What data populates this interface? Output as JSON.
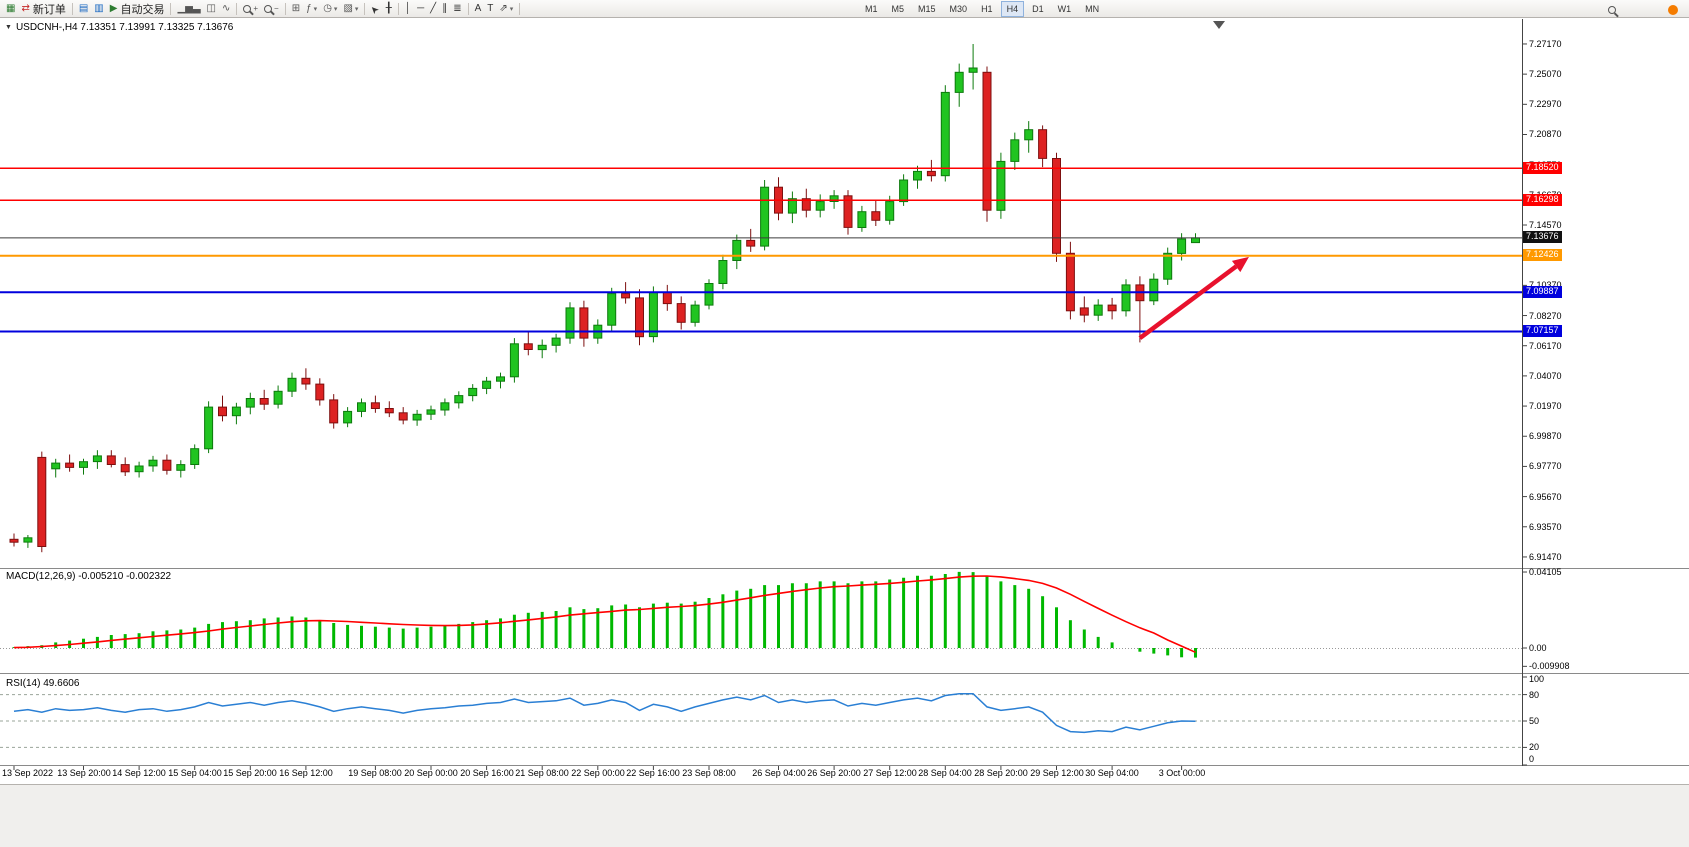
{
  "toolbar": {
    "groups": [
      {
        "items": [
          {
            "type": "icon",
            "name": "new-chart",
            "glyph": "▦",
            "color": "#2e7d32"
          },
          {
            "type": "button",
            "name": "new-order",
            "glyph": "⇄",
            "color": "#c62828",
            "label": "新订单"
          }
        ]
      },
      {
        "items": [
          {
            "type": "icon",
            "name": "market-watch",
            "glyph": "▤",
            "color": "#1565c0"
          },
          {
            "type": "icon",
            "name": "data-window",
            "glyph": "▥",
            "color": "#1565c0"
          },
          {
            "type": "button",
            "name": "autotrading",
            "glyph": "▶",
            "color": "#2e7d32",
            "label": "自动交易"
          }
        ]
      },
      {
        "items": [
          {
            "type": "icon",
            "name": "bar-chart-mode",
            "glyph": "▁▅▃",
            "color": "#555555"
          },
          {
            "type": "icon",
            "name": "candlestick-mode",
            "glyph": "◫",
            "color": "#555555"
          },
          {
            "type": "icon",
            "name": "line-chart-mode",
            "glyph": "∿",
            "color": "#555555"
          }
        ]
      },
      {
        "items": [
          {
            "type": "icon",
            "name": "zoom-in",
            "css": "mag",
            "sub": "+"
          },
          {
            "type": "icon",
            "name": "zoom-out",
            "css": "mag",
            "sub": "−"
          }
        ]
      },
      {
        "items": [
          {
            "type": "icon",
            "name": "tile-windows",
            "glyph": "⊞",
            "color": "#555555"
          },
          {
            "type": "dropdown",
            "name": "indicators",
            "glyph": "ƒ",
            "color": "#555555"
          },
          {
            "type": "dropdown",
            "name": "periods",
            "glyph": "◷",
            "color": "#555555"
          },
          {
            "type": "dropdown",
            "name": "templates",
            "glyph": "▧",
            "color": "#555555"
          }
        ]
      },
      {
        "items": [
          {
            "type": "icon",
            "name": "cursor",
            "glyph": "➤",
            "color": "#333333"
          },
          {
            "type": "icon",
            "name": "crosshair",
            "glyph": "╂",
            "color": "#333333"
          }
        ]
      },
      {
        "items": [
          {
            "type": "icon",
            "name": "vertical-line",
            "glyph": "│",
            "color": "#333333"
          },
          {
            "type": "icon",
            "name": "horizontal-line",
            "glyph": "─",
            "color": "#333333"
          },
          {
            "type": "icon",
            "name": "trendline",
            "glyph": "╱",
            "color": "#333333"
          },
          {
            "type": "icon",
            "name": "equidistant-channel",
            "glyph": "∥",
            "color": "#333333"
          },
          {
            "type": "icon",
            "name": "fibonacci",
            "glyph": "≣",
            "color": "#333333"
          }
        ]
      },
      {
        "items": [
          {
            "type": "icon",
            "name": "text",
            "glyph": "A",
            "color": "#333333"
          },
          {
            "type": "icon",
            "name": "text-label",
            "glyph": "T",
            "color": "#333333"
          },
          {
            "type": "dropdown",
            "name": "arrows",
            "glyph": "⇗",
            "color": "#333333"
          }
        ]
      }
    ],
    "timeframes": [
      "M1",
      "M5",
      "M15",
      "M30",
      "H1",
      "H4",
      "D1",
      "W1",
      "MN"
    ],
    "active_timeframe": "H4",
    "right": [
      {
        "name": "search",
        "css": "mag"
      },
      {
        "name": "notification",
        "css": "dot",
        "color": "#f57c00"
      }
    ]
  },
  "chart": {
    "symbol_label": "USDCNH-,H4 7.13351 7.13991 7.13325 7.13676",
    "price_ticks": [
      "7.27170",
      "7.25070",
      "7.22970",
      "7.20870",
      "7.18770",
      "7.16670",
      "7.14570",
      "7.12470",
      "7.10370",
      "7.08270",
      "7.06170",
      "7.04070",
      "7.01970",
      "6.99870",
      "6.97770",
      "6.95670",
      "6.93570",
      "6.91470"
    ],
    "levels": [
      {
        "label": "7.18520",
        "price": 7.1852,
        "color": "#ff0000",
        "width": 1.5
      },
      {
        "label": "7.16298",
        "price": 7.16298,
        "color": "#ff0000",
        "width": 1.5
      },
      {
        "label": "7.12426",
        "price": 7.12426,
        "color": "#ff9900",
        "width": 2
      },
      {
        "label": "7.09887",
        "price": 7.09887,
        "color": "#0000dd",
        "width": 2
      },
      {
        "label": "7.07157",
        "price": 7.07157,
        "color": "#0000dd",
        "width": 2
      }
    ],
    "current_price": {
      "label": "7.13676",
      "price": 7.13676,
      "color": "#3c3c3c"
    },
    "time_labels": [
      [
        "13 Sep 2022",
        0
      ],
      [
        "13 Sep 20:00",
        5
      ],
      [
        "14 Sep 12:00",
        9
      ],
      [
        "15 Sep 04:00",
        13
      ],
      [
        "15 Sep 20:00",
        17
      ],
      [
        "16 Sep 12:00",
        21
      ],
      [
        "19 Sep 08:00",
        26
      ],
      [
        "20 Sep 00:00",
        30
      ],
      [
        "20 Sep 16:00",
        34
      ],
      [
        "21 Sep 08:00",
        38
      ],
      [
        "22 Sep 00:00",
        42
      ],
      [
        "22 Sep 16:00",
        46
      ],
      [
        "23 Sep 08:00",
        50
      ],
      [
        "26 Sep 04:00",
        55
      ],
      [
        "26 Sep 20:00",
        59
      ],
      [
        "27 Sep 12:00",
        63
      ],
      [
        "28 Sep 04:00",
        67
      ],
      [
        "28 Sep 20:00",
        71
      ],
      [
        "29 Sep 12:00",
        75
      ],
      [
        "30 Sep 04:00",
        79
      ],
      [
        "3 Oct 00:00",
        84
      ]
    ],
    "colors": {
      "up": "#21c421",
      "up_border": "#0c7a0c",
      "down": "#dd2222",
      "down_border": "#7d0f0f",
      "macd_hist": "#00b800",
      "macd_signal": "#ff0000",
      "rsi_line": "#2a7fd4",
      "axis_text": "#000000"
    }
  },
  "chart_data": {
    "type": "candlestick",
    "symbol": "USDCNH-",
    "timeframe": "H4",
    "ohlc_current": {
      "open": "7.13351",
      "high": "7.13991",
      "low": "7.13325",
      "close": "7.13676"
    },
    "candles": [
      [
        6.927,
        6.931,
        6.922,
        6.925
      ],
      [
        6.925,
        6.93,
        6.921,
        6.928
      ],
      [
        6.984,
        6.988,
        6.918,
        6.922
      ],
      [
        6.976,
        6.983,
        6.97,
        6.98
      ],
      [
        6.98,
        6.986,
        6.974,
        6.977
      ],
      [
        6.977,
        6.983,
        6.972,
        6.981
      ],
      [
        6.981,
        6.989,
        6.976,
        6.985
      ],
      [
        6.985,
        6.989,
        6.977,
        6.979
      ],
      [
        6.979,
        6.984,
        6.971,
        6.974
      ],
      [
        6.974,
        6.981,
        6.97,
        6.978
      ],
      [
        6.978,
        6.985,
        6.974,
        6.982
      ],
      [
        6.982,
        6.986,
        6.972,
        6.975
      ],
      [
        6.975,
        6.982,
        6.97,
        6.979
      ],
      [
        6.979,
        6.993,
        6.976,
        6.99
      ],
      [
        6.99,
        7.023,
        6.987,
        7.019
      ],
      [
        7.019,
        7.027,
        7.009,
        7.013
      ],
      [
        7.013,
        7.022,
        7.007,
        7.019
      ],
      [
        7.019,
        7.029,
        7.014,
        7.025
      ],
      [
        7.025,
        7.031,
        7.017,
        7.021
      ],
      [
        7.021,
        7.034,
        7.018,
        7.03
      ],
      [
        7.03,
        7.043,
        7.026,
        7.039
      ],
      [
        7.039,
        7.046,
        7.031,
        7.035
      ],
      [
        7.035,
        7.039,
        7.02,
        7.024
      ],
      [
        7.024,
        7.028,
        7.004,
        7.008
      ],
      [
        7.008,
        7.019,
        7.005,
        7.016
      ],
      [
        7.016,
        7.025,
        7.012,
        7.022
      ],
      [
        7.022,
        7.027,
        7.015,
        7.018
      ],
      [
        7.018,
        7.023,
        7.012,
        7.015
      ],
      [
        7.015,
        7.019,
        7.007,
        7.01
      ],
      [
        7.01,
        7.017,
        7.006,
        7.014
      ],
      [
        7.014,
        7.02,
        7.01,
        7.017
      ],
      [
        7.017,
        7.025,
        7.013,
        7.022
      ],
      [
        7.022,
        7.03,
        7.018,
        7.027
      ],
      [
        7.027,
        7.035,
        7.023,
        7.032
      ],
      [
        7.032,
        7.04,
        7.028,
        7.037
      ],
      [
        7.037,
        7.043,
        7.032,
        7.04
      ],
      [
        7.04,
        7.067,
        7.036,
        7.063
      ],
      [
        7.063,
        7.071,
        7.055,
        7.059
      ],
      [
        7.059,
        7.066,
        7.053,
        7.062
      ],
      [
        7.062,
        7.07,
        7.057,
        7.067
      ],
      [
        7.067,
        7.092,
        7.063,
        7.088
      ],
      [
        7.088,
        7.093,
        7.061,
        7.067
      ],
      [
        7.067,
        7.08,
        7.063,
        7.076
      ],
      [
        7.076,
        7.102,
        7.072,
        7.098
      ],
      [
        7.098,
        7.106,
        7.091,
        7.095
      ],
      [
        7.095,
        7.101,
        7.062,
        7.068
      ],
      [
        7.068,
        7.103,
        7.064,
        7.099
      ],
      [
        7.099,
        7.104,
        7.086,
        7.091
      ],
      [
        7.091,
        7.096,
        7.073,
        7.078
      ],
      [
        7.078,
        7.093,
        7.075,
        7.09
      ],
      [
        7.09,
        7.108,
        7.087,
        7.105
      ],
      [
        7.105,
        7.125,
        7.101,
        7.121
      ],
      [
        7.121,
        7.139,
        7.115,
        7.135
      ],
      [
        7.135,
        7.143,
        7.127,
        7.131
      ],
      [
        7.131,
        7.177,
        7.128,
        7.172
      ],
      [
        7.172,
        7.179,
        7.149,
        7.154
      ],
      [
        7.154,
        7.169,
        7.147,
        7.164
      ],
      [
        7.164,
        7.171,
        7.151,
        7.156
      ],
      [
        7.156,
        7.167,
        7.151,
        7.162
      ],
      [
        7.162,
        7.17,
        7.157,
        7.166
      ],
      [
        7.166,
        7.17,
        7.139,
        7.144
      ],
      [
        7.144,
        7.159,
        7.141,
        7.155
      ],
      [
        7.155,
        7.163,
        7.145,
        7.149
      ],
      [
        7.149,
        7.166,
        7.146,
        7.162
      ],
      [
        7.162,
        7.181,
        7.159,
        7.177
      ],
      [
        7.177,
        7.187,
        7.171,
        7.183
      ],
      [
        7.183,
        7.191,
        7.176,
        7.18
      ],
      [
        7.18,
        7.243,
        7.176,
        7.238
      ],
      [
        7.238,
        7.258,
        7.228,
        7.252
      ],
      [
        7.252,
        7.2717,
        7.24,
        7.255
      ],
      [
        7.252,
        7.256,
        7.148,
        7.156
      ],
      [
        7.156,
        7.196,
        7.15,
        7.19
      ],
      [
        7.19,
        7.21,
        7.184,
        7.205
      ],
      [
        7.205,
        7.218,
        7.196,
        7.212
      ],
      [
        7.212,
        7.215,
        7.186,
        7.192
      ],
      [
        7.192,
        7.196,
        7.12,
        7.126
      ],
      [
        7.126,
        7.134,
        7.08,
        7.086
      ],
      [
        7.088,
        7.096,
        7.078,
        7.083
      ],
      [
        7.083,
        7.094,
        7.079,
        7.09
      ],
      [
        7.09,
        7.095,
        7.08,
        7.086
      ],
      [
        7.086,
        7.108,
        7.082,
        7.104
      ],
      [
        7.104,
        7.11,
        7.064,
        7.093
      ],
      [
        7.093,
        7.112,
        7.09,
        7.108
      ],
      [
        7.108,
        7.13,
        7.104,
        7.126
      ],
      [
        7.126,
        7.14,
        7.121,
        7.136
      ],
      [
        7.13351,
        7.13991,
        7.13325,
        7.13676
      ]
    ],
    "indicators": {
      "macd": {
        "label": "MACD(12,26,9) -0.005210 -0.002322",
        "params": "12,26,9",
        "values": "-0.005210 -0.002322",
        "axis_ticks": [
          "0.04105",
          "0.00",
          "-0.009908"
        ],
        "histogram": [
          0.0005,
          0.001,
          0.0015,
          0.003,
          0.004,
          0.005,
          0.006,
          0.007,
          0.0075,
          0.008,
          0.009,
          0.0095,
          0.01,
          0.011,
          0.013,
          0.014,
          0.0145,
          0.015,
          0.016,
          0.0165,
          0.017,
          0.0165,
          0.015,
          0.0135,
          0.0125,
          0.012,
          0.0115,
          0.011,
          0.0105,
          0.011,
          0.0115,
          0.012,
          0.013,
          0.014,
          0.015,
          0.016,
          0.018,
          0.019,
          0.0195,
          0.02,
          0.022,
          0.021,
          0.0215,
          0.023,
          0.0235,
          0.022,
          0.024,
          0.0245,
          0.024,
          0.025,
          0.027,
          0.029,
          0.031,
          0.032,
          0.034,
          0.034,
          0.035,
          0.035,
          0.036,
          0.036,
          0.035,
          0.036,
          0.036,
          0.037,
          0.038,
          0.039,
          0.039,
          0.04,
          0.0411,
          0.041,
          0.039,
          0.036,
          0.034,
          0.032,
          0.028,
          0.022,
          0.015,
          0.01,
          0.006,
          0.003,
          0.0,
          -0.002,
          -0.003,
          -0.004,
          -0.005,
          -0.00521
        ],
        "signal": [
          0.0002,
          0.0004,
          0.0008,
          0.0013,
          0.0019,
          0.0026,
          0.0033,
          0.0041,
          0.0048,
          0.0055,
          0.0062,
          0.0069,
          0.0076,
          0.0083,
          0.0092,
          0.0102,
          0.0111,
          0.0119,
          0.0127,
          0.0135,
          0.0142,
          0.0147,
          0.0148,
          0.0146,
          0.0143,
          0.0139,
          0.0135,
          0.0131,
          0.0127,
          0.0124,
          0.0122,
          0.0121,
          0.0122,
          0.0125,
          0.013,
          0.0136,
          0.0144,
          0.0152,
          0.016,
          0.0168,
          0.0178,
          0.0185,
          0.0191,
          0.0198,
          0.0205,
          0.0208,
          0.0214,
          0.022,
          0.0224,
          0.0229,
          0.0237,
          0.0247,
          0.0259,
          0.0271,
          0.0284,
          0.0295,
          0.0306,
          0.0315,
          0.0324,
          0.0331,
          0.0335,
          0.034,
          0.0344,
          0.0349,
          0.0355,
          0.0362,
          0.0368,
          0.0375,
          0.0383,
          0.0388,
          0.0389,
          0.0384,
          0.0375,
          0.0365,
          0.0349,
          0.0324,
          0.029,
          0.0252,
          0.0214,
          0.0177,
          0.0142,
          0.0109,
          0.0081,
          0.0043,
          0.001,
          -0.00232
        ]
      },
      "rsi": {
        "label": "RSI(14) 49.6606",
        "period": "14",
        "value": "49.6606",
        "axis_ticks": [
          "100",
          "80",
          "50",
          "20",
          "0"
        ],
        "levels": [
          80,
          50,
          20
        ],
        "values": [
          61,
          63,
          60,
          64,
          62,
          63,
          65,
          62,
          60,
          63,
          64,
          61,
          63,
          66,
          71,
          67,
          69,
          71,
          68,
          71,
          73,
          70,
          66,
          61,
          64,
          66,
          64,
          62,
          59,
          62,
          64,
          65,
          67,
          68,
          70,
          71,
          75,
          71,
          72,
          73,
          76,
          68,
          70,
          74,
          71,
          62,
          69,
          66,
          61,
          66,
          70,
          74,
          77,
          74,
          79,
          71,
          74,
          71,
          73,
          74,
          67,
          70,
          68,
          71,
          74,
          76,
          73,
          79,
          81,
          81,
          66,
          62,
          64,
          66,
          60,
          45,
          38,
          37,
          39,
          38,
          43,
          40,
          44,
          48,
          50,
          49.66
        ]
      }
    }
  },
  "annotation": {
    "arrow": {
      "from_index": 81,
      "from_price": 7.067,
      "to_index": 88.5,
      "to_price": 7.121,
      "color": "#e8112d"
    }
  }
}
